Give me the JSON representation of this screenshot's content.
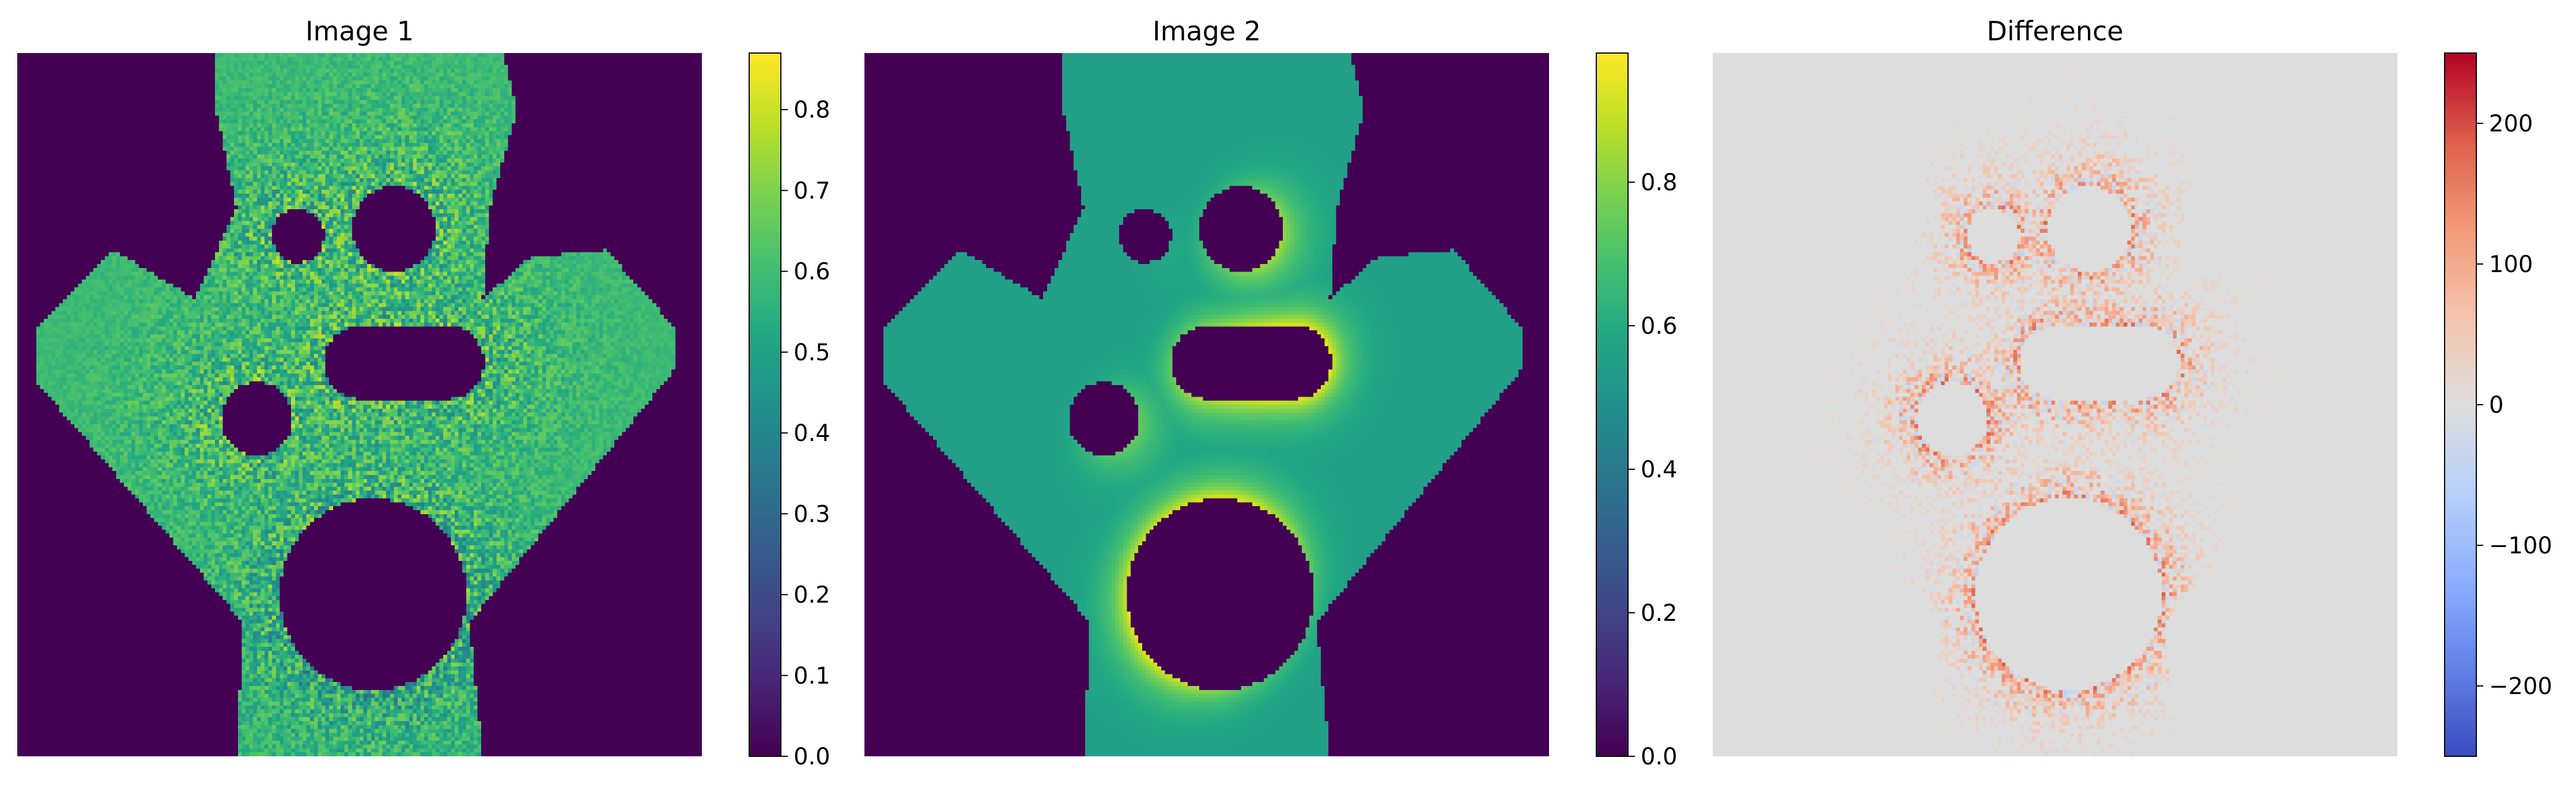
{
  "chart_data": [
    {
      "type": "heatmap",
      "title": "Image 1",
      "colormap": "viridis",
      "clim": [
        0,
        0.87
      ],
      "colorbar_ticks": [
        "0.0",
        "0.1",
        "0.2",
        "0.3",
        "0.4",
        "0.5",
        "0.6",
        "0.7",
        "0.8"
      ],
      "field": "noisy",
      "axes_visible": false
    },
    {
      "type": "heatmap",
      "title": "Image 2",
      "colormap": "viridis",
      "clim": [
        0,
        0.98
      ],
      "colorbar_ticks": [
        "0.0",
        "0.2",
        "0.4",
        "0.6",
        "0.8"
      ],
      "field": "smooth",
      "axes_visible": false
    },
    {
      "type": "heatmap",
      "title": "Difference",
      "colormap": "coolwarm",
      "clim": [
        -250,
        250
      ],
      "colorbar_ticks": [
        "−200",
        "−100",
        "0",
        "100",
        "200"
      ],
      "field": "difference",
      "axes_visible": false
    }
  ]
}
